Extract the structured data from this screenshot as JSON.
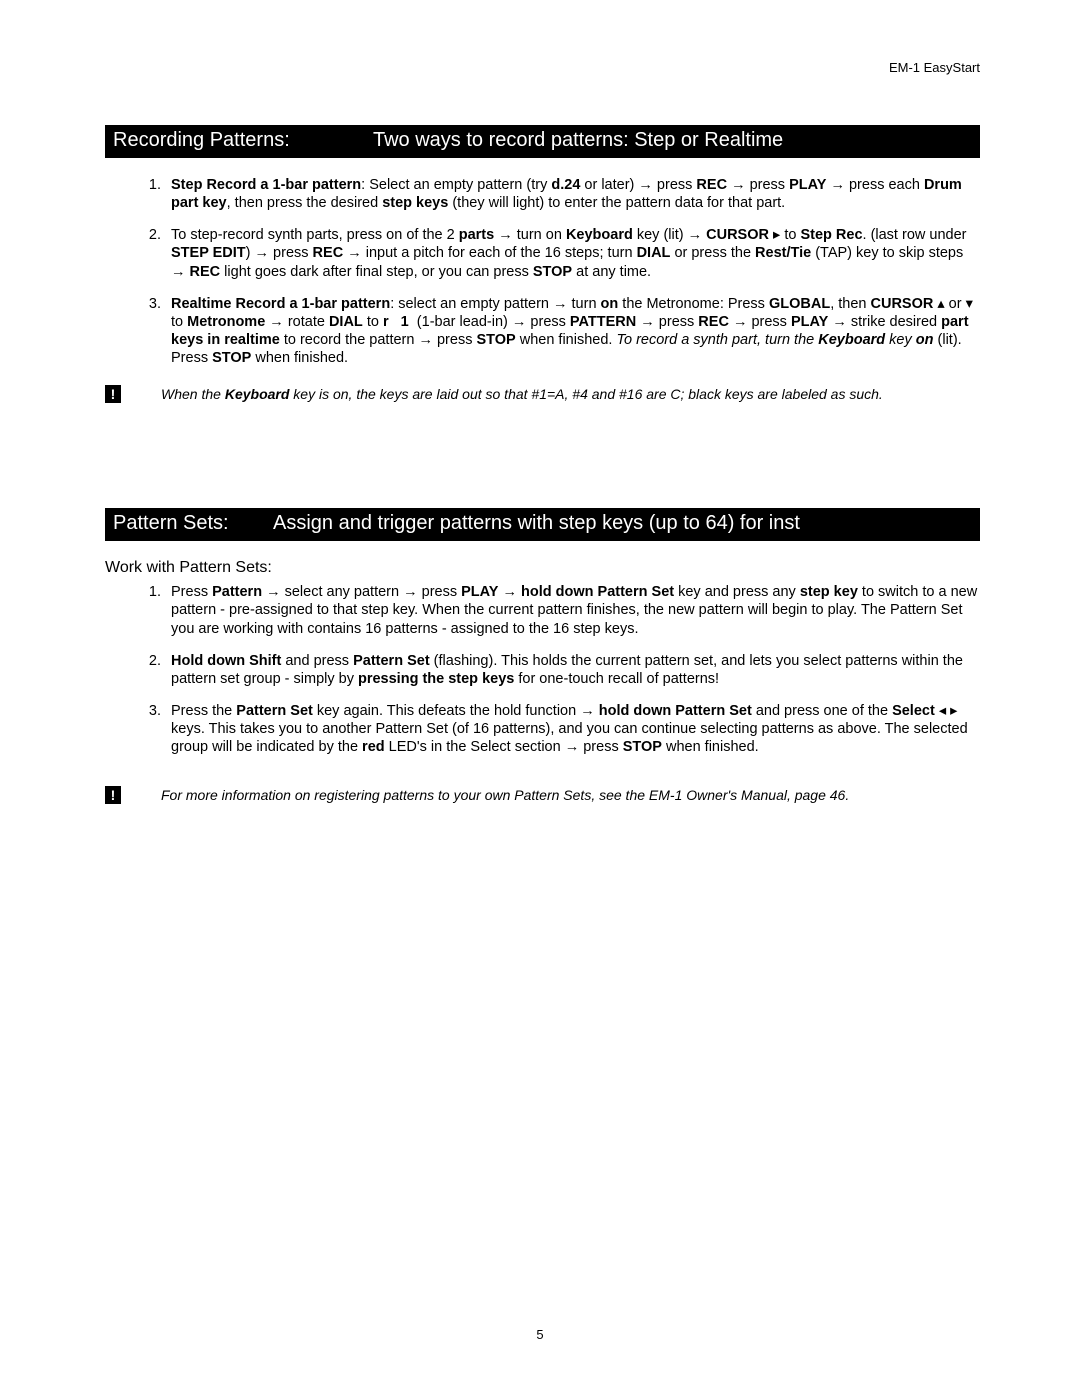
{
  "header": {
    "title": "EM-1 EasyStart"
  },
  "section1": {
    "lead": "Recording Patterns:",
    "rest": "Two ways to record patterns: Step or Realtime"
  },
  "list1": {
    "item1": "<b>Step Record a 1-bar pattern</b>: Select an empty pattern (try <b>d.24</b> or later) → press <b>REC</b> → press <b>PLAY</b> → press each <b>Drum part key</b>, then press the desired <b>step keys</b> (they will light) to enter the pattern data for that part.",
    "item2": "To step-record synth parts, press on of the 2 <b>parts</b> → turn on <b>Keyboard</b> key (lit) → <b>CURSOR</b> ▸ to <b>Step Rec</b>. (last row under <b>STEP EDIT</b>) → press <b>REC</b> → input a pitch for each of the 16 steps; turn <b>DIAL</b> or press the <b>Rest/Tie</b> (TAP) key to skip steps → <b>REC</b> light goes dark after final step, or you can press <b>STOP</b> at any time.",
    "item3": "<b>Realtime Record a 1-bar pattern</b>: select an empty pattern → turn <b>on</b> the Metronome: Press <b>GLOBAL</b>, then <b>CURSOR</b> ▴ or ▾ to <b>Metronome</b> → rotate <b>DIAL</b> to <b>r &nbsp; 1</b> &nbsp;(1-bar lead-in) → press <b>PATTERN</b> → press <b>REC</b> → press <b>PLAY</b> → strike desired <b>part keys in realtime</b> to record the pattern → press <b>STOP</b> when finished. <i>To record a synth part, turn the <b>Keyboard</b> key <b>on</b></i> (lit). Press <b>STOP</b> when finished."
  },
  "note1": "When the <b>Keyboard</b> key is on, the keys are laid out so that #1=A, #4 and #16 are C; black keys are labeled as such.",
  "section2": {
    "lead": "Pattern Sets:",
    "rest": "Assign and trigger patterns with step keys (up to 64) for inst"
  },
  "subhead2": "Work with Pattern Sets:",
  "list2": {
    "item1": "Press <b>Pattern</b> → select any pattern → press <b>PLAY</b> → <b>hold down Pattern Set</b> key and press any <b>step key</b> to switch to a new pattern - pre-assigned to that step key. When the current pattern finishes, the new pattern will begin to play. The Pattern Set you are working with contains 16 patterns - assigned to the 16 step keys.",
    "item2": "<b>Hold down Shift</b> and press <b>Pattern Set</b> (flashing). This holds the current pattern set, and lets you select patterns within the pattern set group - simply by <b>pressing the step keys</b> for one-touch recall of patterns!",
    "item3": "Press the <b>Pattern Set</b> key again. This defeats the hold function → <b>hold down Pattern Set</b> and press one of the <b>Select</b> ◂ ▸ keys. This takes you to another Pattern Set (of 16 patterns), and you can continue selecting patterns as above. The selected group will be indicated by the <b>red</b> LED's in the Select section → press <b>STOP</b> when finished."
  },
  "note2": "For more information on registering patterns to your own Pattern Sets, see the EM-1 Owner's Manual, page 46.",
  "pagenum": "5",
  "colors": {
    "bar_bg": "#000000",
    "bar_fg": "#ffffff",
    "page_bg": "#ffffff",
    "text": "#000000"
  }
}
